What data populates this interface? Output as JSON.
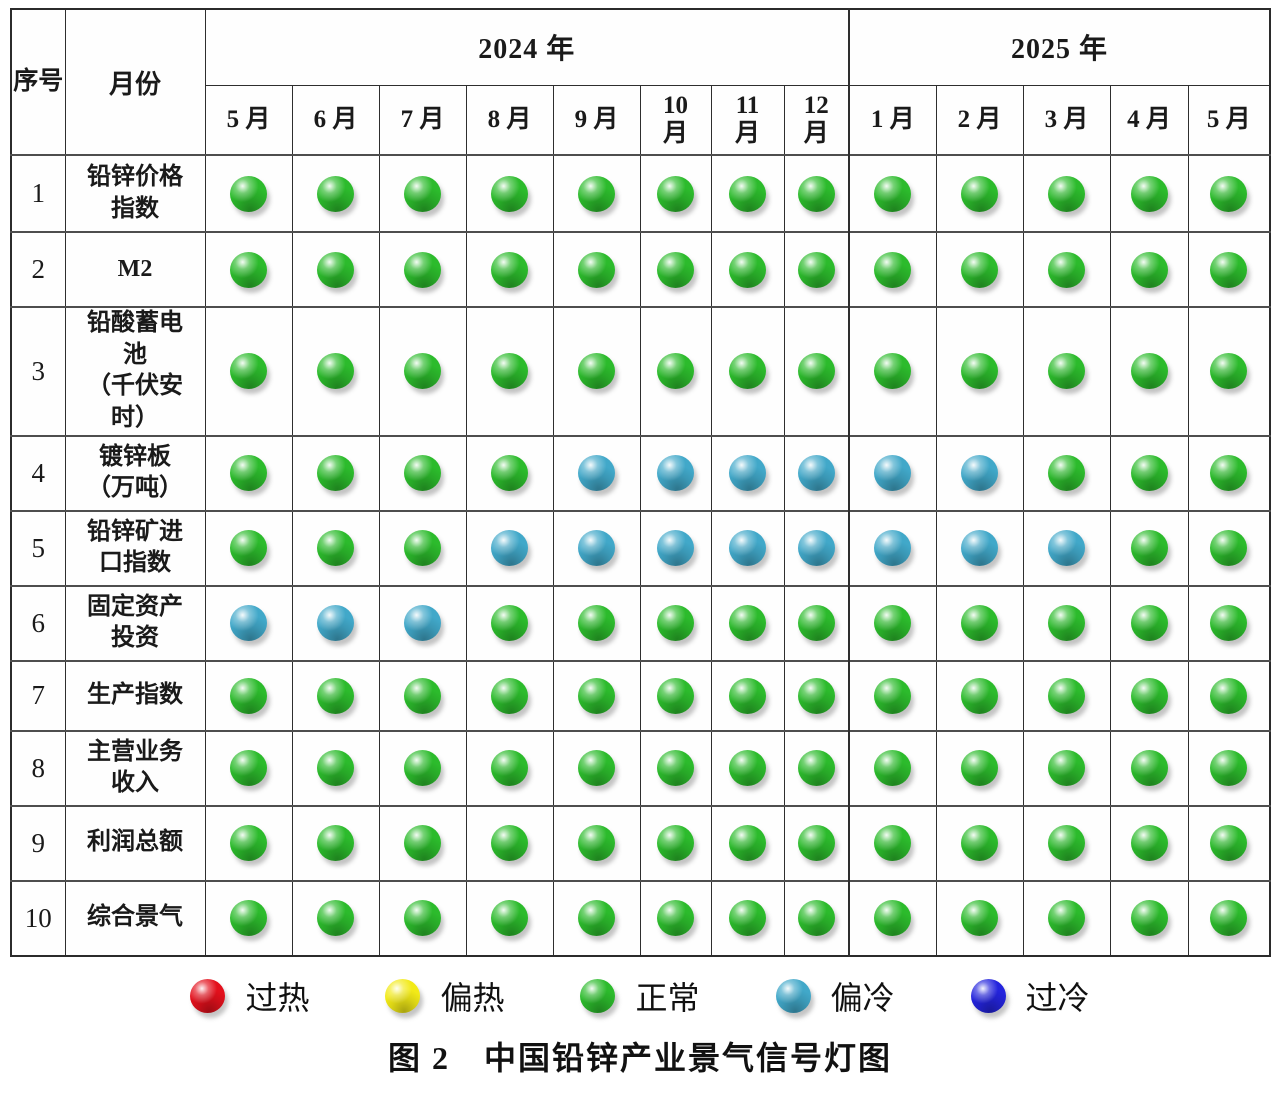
{
  "chart_data": {
    "type": "table",
    "title": "图 2　中国铅锌产业景气信号灯图",
    "header": {
      "seq_label": "序号",
      "month_label": "月份",
      "year_2024": "2024 年",
      "year_2025": "2025 年",
      "months": [
        "5 月",
        "6 月",
        "7 月",
        "8 月",
        "9 月",
        "10\n月",
        "11\n月",
        "12\n月",
        "1 月",
        "2 月",
        "3 月",
        "4 月",
        "5 月"
      ]
    },
    "rows": [
      {
        "seq": "1",
        "label": "铅锌价格\n指数",
        "signals": [
          "green",
          "green",
          "green",
          "green",
          "green",
          "green",
          "green",
          "green",
          "green",
          "green",
          "green",
          "green",
          "green"
        ]
      },
      {
        "seq": "2",
        "label": "M2",
        "signals": [
          "green",
          "green",
          "green",
          "green",
          "green",
          "green",
          "green",
          "green",
          "green",
          "green",
          "green",
          "green",
          "green"
        ]
      },
      {
        "seq": "3",
        "label": "铅酸蓄电\n池\n（千伏安\n时）",
        "signals": [
          "green",
          "green",
          "green",
          "green",
          "green",
          "green",
          "green",
          "green",
          "green",
          "green",
          "green",
          "green",
          "green"
        ]
      },
      {
        "seq": "4",
        "label": "镀锌板\n（万吨）",
        "signals": [
          "green",
          "green",
          "green",
          "green",
          "cyan",
          "cyan",
          "cyan",
          "cyan",
          "cyan",
          "cyan",
          "green",
          "green",
          "green"
        ]
      },
      {
        "seq": "5",
        "label": "铅锌矿进\n口指数",
        "signals": [
          "green",
          "green",
          "green",
          "cyan",
          "cyan",
          "cyan",
          "cyan",
          "cyan",
          "cyan",
          "cyan",
          "cyan",
          "green",
          "green"
        ]
      },
      {
        "seq": "6",
        "label": "固定资产\n投资",
        "signals": [
          "cyan",
          "cyan",
          "cyan",
          "green",
          "green",
          "green",
          "green",
          "green",
          "green",
          "green",
          "green",
          "green",
          "green"
        ]
      },
      {
        "seq": "7",
        "label": "生产指数",
        "signals": [
          "green",
          "green",
          "green",
          "green",
          "green",
          "green",
          "green",
          "green",
          "green",
          "green",
          "green",
          "green",
          "green"
        ]
      },
      {
        "seq": "8",
        "label": "主营业务\n收入",
        "signals": [
          "green",
          "green",
          "green",
          "green",
          "green",
          "green",
          "green",
          "green",
          "green",
          "green",
          "green",
          "green",
          "green"
        ]
      },
      {
        "seq": "9",
        "label": "利润总额",
        "signals": [
          "green",
          "green",
          "green",
          "green",
          "green",
          "green",
          "green",
          "green",
          "green",
          "green",
          "green",
          "green",
          "green"
        ]
      },
      {
        "seq": "10",
        "label": "综合景气",
        "signals": [
          "green",
          "green",
          "green",
          "green",
          "green",
          "green",
          "green",
          "green",
          "green",
          "green",
          "green",
          "green",
          "green"
        ]
      }
    ],
    "legend": [
      {
        "color": "red",
        "label": "过热"
      },
      {
        "color": "yellow",
        "label": "偏热"
      },
      {
        "color": "green",
        "label": "正常"
      },
      {
        "color": "cyan",
        "label": "偏冷"
      },
      {
        "color": "blue",
        "label": "过冷"
      }
    ],
    "colors": {
      "red": "#e3101c",
      "yellow": "#f2ea17",
      "green": "#2cbb2c",
      "cyan": "#41a8c9",
      "blue": "#2424dd"
    }
  },
  "caption": "图 2　中国铅锌产业景气信号灯图"
}
